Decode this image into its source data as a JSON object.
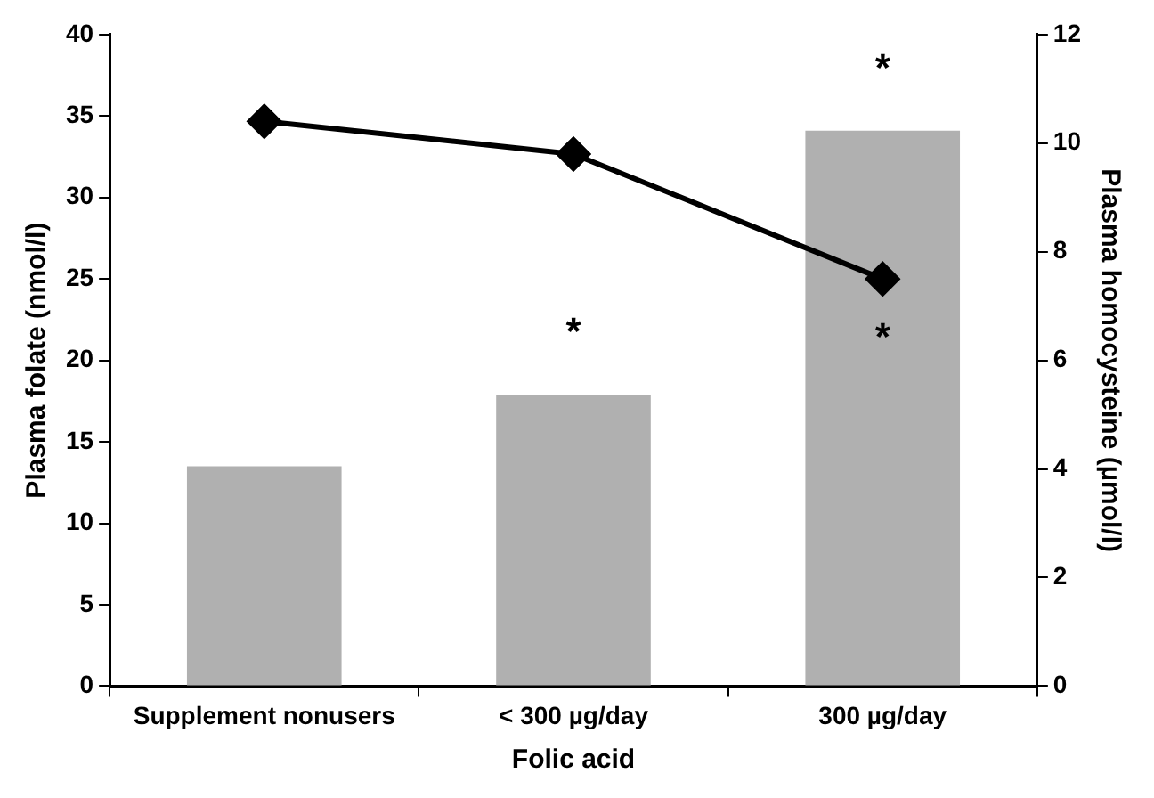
{
  "chart_data": {
    "type": "bar",
    "xlabel": "Folic acid",
    "ylabel": "Plasma folate (nmol/l)",
    "y2label": "Plasma homocysteine (µmol/l)",
    "categories": [
      "Supplement nonusers",
      "< 300 µg/day",
      "300 µg/day"
    ],
    "series": [
      {
        "color": "#b0b0b0",
        "values": [
          13.5,
          17.9,
          34.1
        ],
        "value_labels": [
          null,
          "*",
          "*"
        ]
      },
      {
        "type": "line",
        "axis": "y2",
        "color": "#000000",
        "values": [
          10.4,
          9.8,
          7.5
        ],
        "value_labels": [
          null,
          null,
          "*"
        ]
      }
    ],
    "ylim": [
      0,
      40
    ],
    "yticks": [
      0,
      5,
      10,
      15,
      20,
      25,
      30,
      35,
      40
    ],
    "y2lim": [
      0,
      12
    ],
    "y2ticks": [
      0,
      2,
      4,
      6,
      8,
      10,
      12
    ],
    "grid": false,
    "legend": false,
    "marker": "diamond",
    "line_style": "solid"
  }
}
